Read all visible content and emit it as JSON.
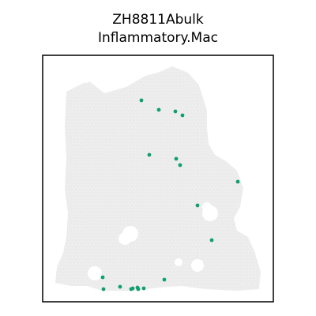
{
  "chart_data": {
    "type": "scatter",
    "title_line1": "ZH8811Abulk",
    "title_line2": "Inflammatory.Mac",
    "xlabel": "",
    "ylabel": "",
    "axis_ticks": "none",
    "grid": false,
    "legend": "none",
    "colors": {
      "background_spot": "#ebebeb",
      "highlight_spot": "#10a070",
      "frame": "#000000"
    },
    "series": [
      {
        "values": [
          [
            179,
            127
          ],
          [
            201,
            139
          ],
          [
            222,
            141
          ],
          [
            231,
            146
          ],
          [
            189,
            196
          ],
          [
            223,
            201
          ],
          [
            228,
            209
          ],
          [
            301,
            230
          ],
          [
            250,
            260
          ],
          [
            268,
            304
          ],
          [
            130,
            351
          ],
          [
            208,
            354
          ],
          [
            152,
            363
          ],
          [
            168,
            365
          ],
          [
            174,
            364
          ],
          [
            166,
            366
          ],
          [
            182,
            365
          ],
          [
            131,
            366
          ],
          [
            175,
            366
          ]
        ]
      }
    ]
  }
}
